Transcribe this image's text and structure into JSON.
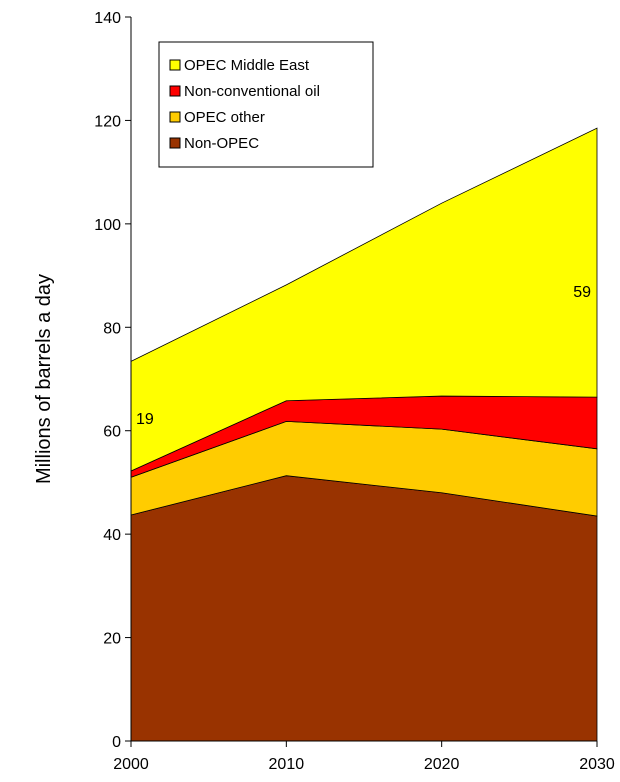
{
  "chart_data": {
    "type": "area",
    "stacked": true,
    "x": [
      2000,
      2010,
      2020,
      2030
    ],
    "x_tick_labels": [
      "2000",
      "2010",
      "2020",
      "2030"
    ],
    "ylim": [
      0,
      140
    ],
    "y_ticks": [
      0,
      20,
      40,
      60,
      80,
      100,
      120,
      140
    ],
    "xlabel": "",
    "ylabel": "Millions of barrels a day",
    "grid": false,
    "legend_position": "top-left",
    "series": [
      {
        "name": "Non-OPEC",
        "values": [
          43.7,
          51.3,
          48,
          43.5
        ],
        "color": "#993300"
      },
      {
        "name": "OPEC other",
        "values": [
          7.3,
          10.5,
          12.3,
          13
        ],
        "color": "#FFCC00"
      },
      {
        "name": "Non-conventional oil",
        "values": [
          1.2,
          4,
          6.4,
          10
        ],
        "color": "#FF0000"
      },
      {
        "name": "OPEC Middle East",
        "values": [
          21.2,
          22.4,
          37.3,
          52
        ],
        "color": "#FFFF00"
      }
    ],
    "legend_order": [
      "OPEC Middle East",
      "Non-conventional oil",
      "OPEC other",
      "Non-OPEC"
    ],
    "annotations": [
      {
        "text": "19",
        "x": 2000,
        "y": 62.5
      },
      {
        "text": "59",
        "x": 2030,
        "y": 87
      }
    ]
  }
}
